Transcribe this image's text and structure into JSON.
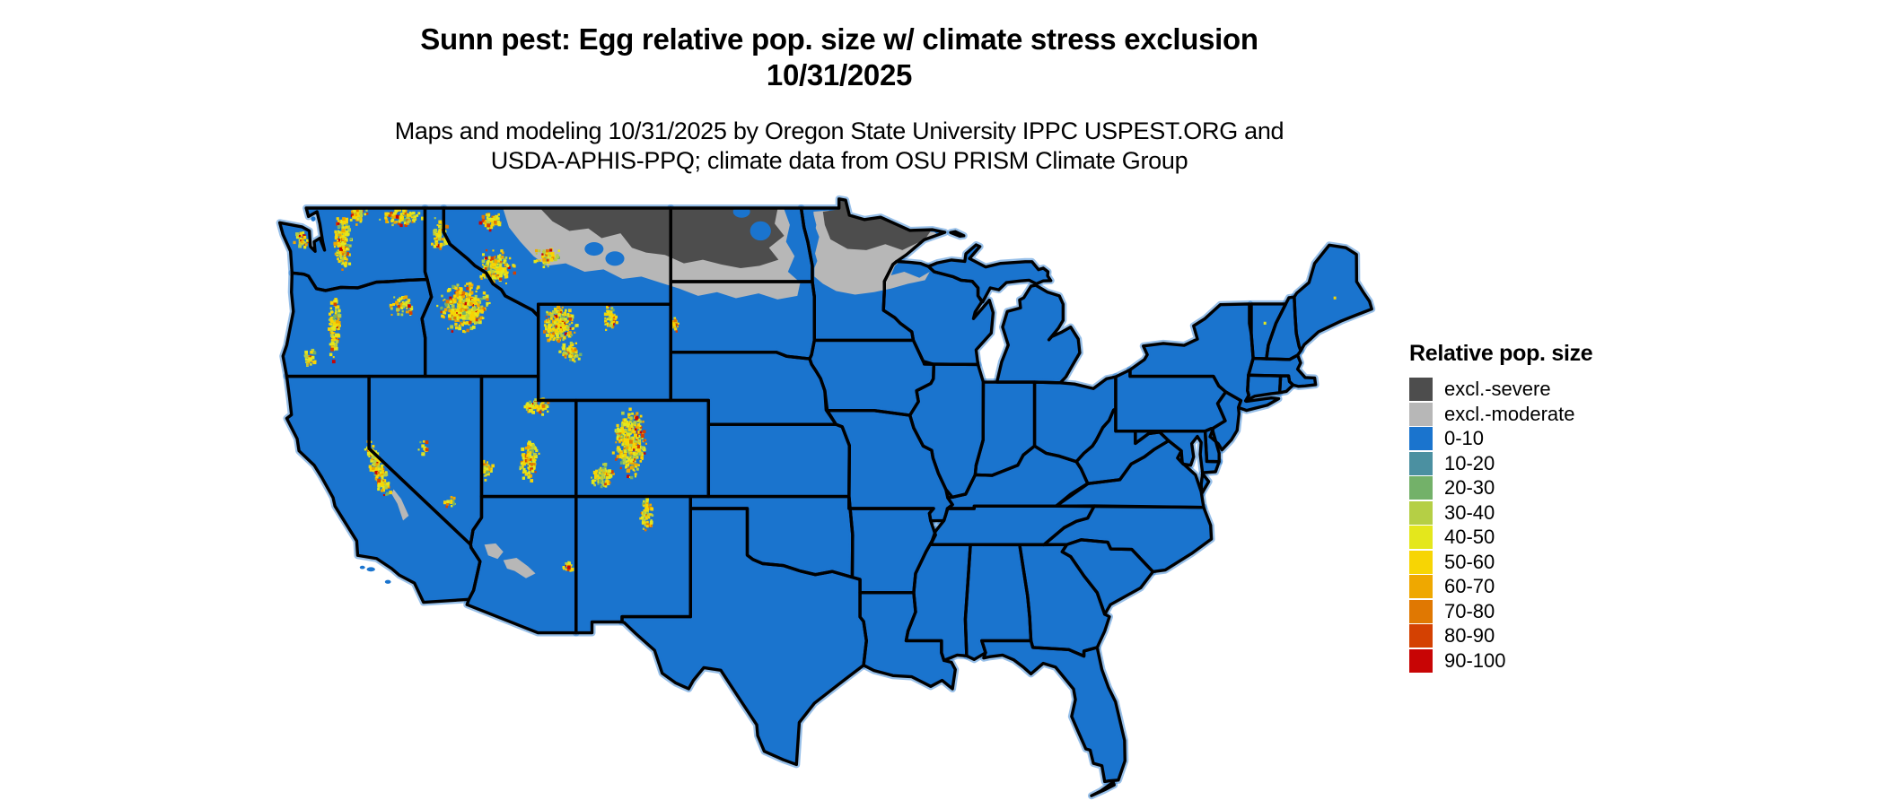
{
  "title": {
    "line1": "Sunn pest: Egg relative pop. size w/ climate stress exclusion",
    "line2": "10/31/2025"
  },
  "subtitle": {
    "line1": "Maps and modeling 10/31/2025 by Oregon State University IPPC USPEST.ORG and",
    "line2": "USDA-APHIS-PPQ; climate data from OSU PRISM Climate Group"
  },
  "legend": {
    "title": "Relative pop. size",
    "items": [
      {
        "label": "excl.-severe",
        "color": "#4d4d4d"
      },
      {
        "label": "excl.-moderate",
        "color": "#b7b7b7"
      },
      {
        "label": "0-10",
        "color": "#1a74ce"
      },
      {
        "label": "10-20",
        "color": "#4b90a1"
      },
      {
        "label": "20-30",
        "color": "#73b169"
      },
      {
        "label": "30-40",
        "color": "#b5cf45"
      },
      {
        "label": "40-50",
        "color": "#e4e71c"
      },
      {
        "label": "50-60",
        "color": "#f7d504"
      },
      {
        "label": "60-70",
        "color": "#efa800"
      },
      {
        "label": "70-80",
        "color": "#e07802"
      },
      {
        "label": "80-90",
        "color": "#d44102"
      },
      {
        "label": "90-100",
        "color": "#c80505"
      }
    ]
  },
  "map": {
    "background": "#ffffff",
    "land_fill": "#1a74ce",
    "border_color": "#000000",
    "excl_severe_color": "#4d4d4d",
    "excl_moderate_color": "#b7b7b7"
  }
}
